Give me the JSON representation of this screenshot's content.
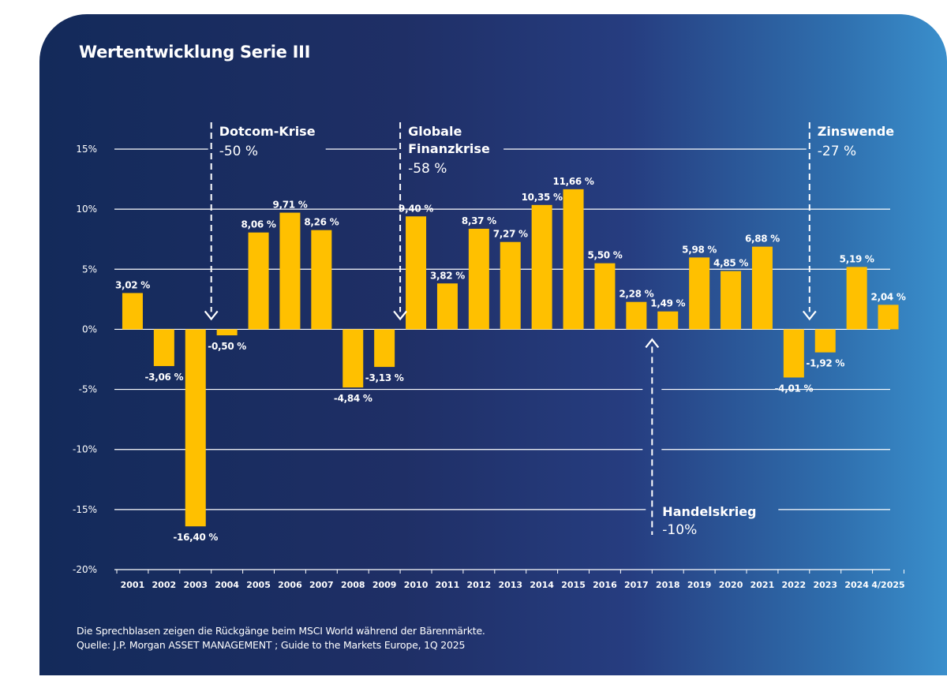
{
  "title": "Wertentwicklung Serie III",
  "footnotes": [
    "Die Sprechblasen zeigen die Rückgänge beim MSCI World während der Bärenmärkte.",
    "Quelle:  J.P. Morgan ASSET MANAGEMENT ; Guide to the Markets Europe, 1Q 2025"
  ],
  "colors": {
    "bar": "#ffc000",
    "text": "#ffffff",
    "background_left": "#132a5a",
    "background_right": "#3a8fcc"
  },
  "chart_data": {
    "type": "bar",
    "categories": [
      "2001",
      "2002",
      "2003",
      "2004",
      "2005",
      "2006",
      "2007",
      "2008",
      "2009",
      "2010",
      "2011",
      "2012",
      "2013",
      "2014",
      "2015",
      "2016",
      "2017",
      "2018",
      "2019",
      "2020",
      "2021",
      "2022",
      "2023",
      "2024",
      "4/2025"
    ],
    "values": [
      3.02,
      -3.06,
      -16.4,
      -0.5,
      8.06,
      9.71,
      8.26,
      -4.84,
      -3.13,
      9.4,
      3.82,
      8.37,
      7.27,
      10.35,
      11.66,
      5.5,
      2.28,
      1.49,
      5.98,
      4.85,
      6.88,
      -4.01,
      -1.92,
      5.19,
      2.04
    ],
    "value_labels": [
      "3,02 %",
      "-3,06 %",
      "-16,40 %",
      "-0,50 %",
      "8,06 %",
      "9,71 %",
      "8,26 %",
      "-4,84 %",
      "-3,13 %",
      "9,40 %",
      "3,82 %",
      "8,37 %",
      "7,27 %",
      "10,35 %",
      "11,66 %",
      "5,50 %",
      "2,28 %",
      "1,49 %",
      "5,98 %",
      "4,85 %",
      "6,88 %",
      "-4,01 %",
      "-1,92 %",
      "5,19 %",
      "2,04 %"
    ],
    "y_ticks": [
      15,
      10,
      5,
      0,
      -5,
      -10,
      -15,
      -20
    ],
    "y_tick_labels": [
      "15%",
      "10%",
      "5%",
      "0%",
      "-5%",
      "-10%",
      "-15%",
      "-20%"
    ],
    "ylim": [
      -20,
      15
    ],
    "grid": true,
    "annotations": [
      {
        "title_lines": [
          "Dotcom-Krise"
        ],
        "value": "-50 %",
        "between": [
          2,
          3
        ],
        "arrow": "down"
      },
      {
        "title_lines": [
          "Globale",
          "Finanzkrise"
        ],
        "value": "-58 %",
        "between": [
          8,
          9
        ],
        "arrow": "down"
      },
      {
        "title_lines": [
          "Zinswende"
        ],
        "value": "-27 %",
        "between": [
          21,
          22
        ],
        "arrow": "down"
      },
      {
        "title_lines": [
          "Handelskrieg"
        ],
        "value": "-10%",
        "between": [
          16,
          17
        ],
        "arrow": "up"
      }
    ]
  }
}
